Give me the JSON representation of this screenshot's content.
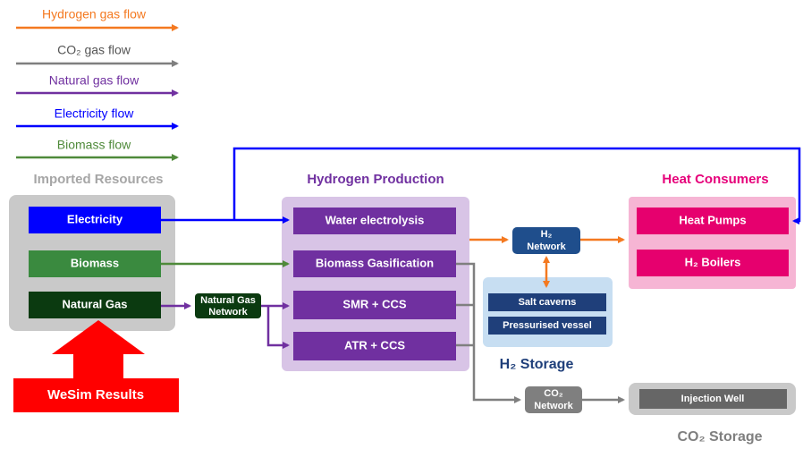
{
  "legend": [
    {
      "label": "Hydrogen gas flow"
    },
    {
      "label": "CO₂ gas flow"
    },
    {
      "label": "Natural gas flow"
    },
    {
      "label": "Electricity flow"
    },
    {
      "label": "Biomass flow"
    }
  ],
  "imported_resources": {
    "title": "Imported Resources",
    "items": [
      "Electricity",
      "Biomass",
      "Natural Gas"
    ]
  },
  "wesim": "WeSim Results",
  "natural_gas_network": [
    "Natural Gas",
    "Network"
  ],
  "hydrogen_production": {
    "title": "Hydrogen Production",
    "items": [
      "Water electrolysis",
      "Biomass Gasification",
      "SMR + CCS",
      "ATR + CCS"
    ]
  },
  "h2_network": [
    "H₂",
    "Network"
  ],
  "h2_storage": {
    "title": "H₂ Storage",
    "items": [
      "Salt caverns",
      "Pressurised vessel"
    ]
  },
  "heat_consumers": {
    "title": "Heat Consumers",
    "items": [
      "Heat Pumps",
      "H₂ Boilers"
    ]
  },
  "co2_network": [
    "CO₂",
    "Network"
  ],
  "co2_storage": {
    "title": "CO₂ Storage",
    "items": [
      "Injection Well"
    ]
  }
}
